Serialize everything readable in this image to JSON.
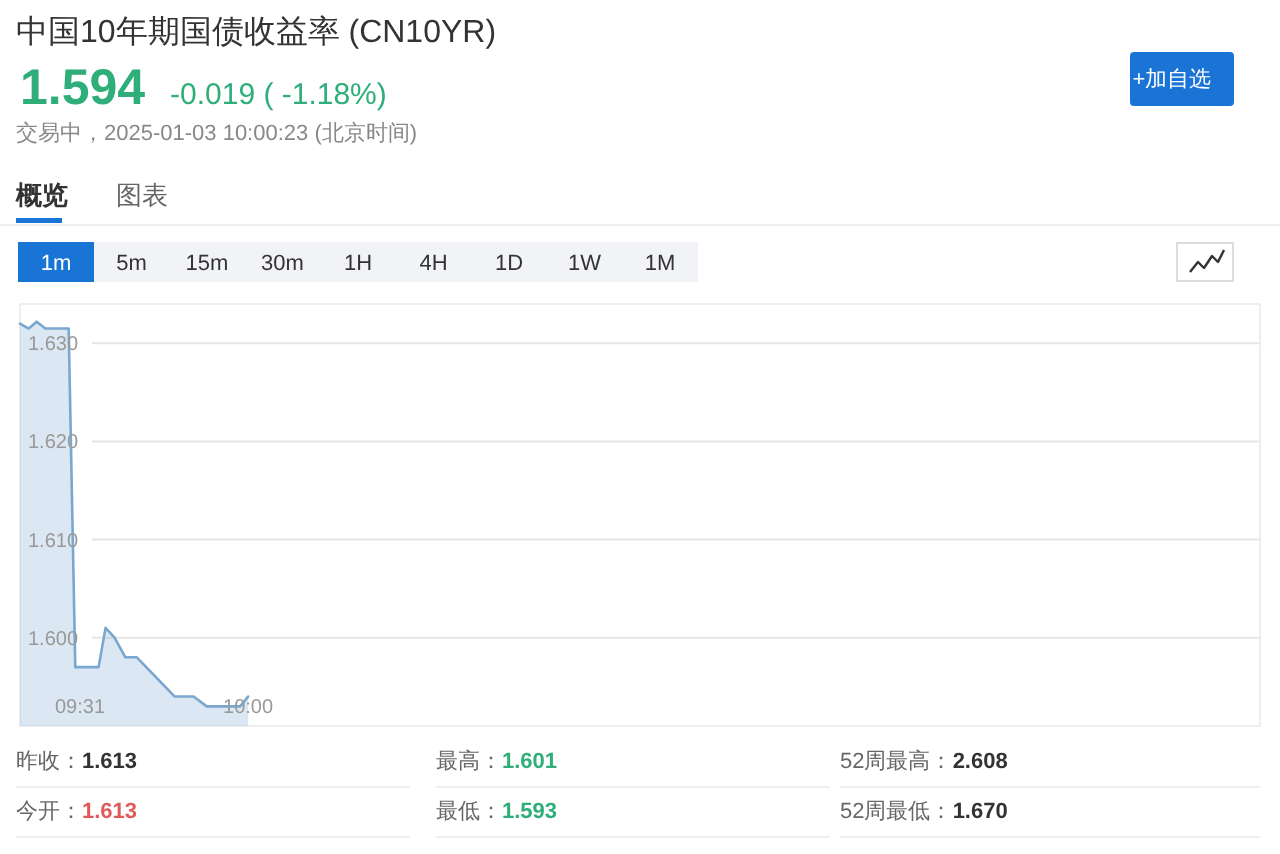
{
  "chart_data": {
    "type": "area",
    "title": "中国10年期国债收益率 (CN10YR)",
    "x": [
      9.344,
      9.369,
      9.392,
      9.417,
      9.484,
      9.503,
      9.57,
      9.59,
      9.616,
      9.647,
      9.68,
      9.789,
      9.843,
      9.881,
      9.977,
      10.0
    ],
    "values": [
      1.632,
      1.6315,
      1.6322,
      1.6315,
      1.6315,
      1.597,
      1.597,
      1.601,
      1.6,
      1.598,
      1.598,
      1.594,
      1.594,
      1.593,
      1.593,
      1.594
    ],
    "color": "#7aa7d0",
    "xlim": [
      9.344,
      12.91
    ],
    "ylim": [
      1.591,
      1.634
    ],
    "xticks": [
      {
        "value": 9.5167,
        "label": "09:31"
      },
      {
        "value": 10,
        "label": "10:00"
      }
    ],
    "yticks": [
      {
        "value": 1.6,
        "label": "1.600"
      },
      {
        "value": 1.61,
        "label": "1.610"
      },
      {
        "value": 1.62,
        "label": "1.620"
      },
      {
        "value": 1.63,
        "label": "1.630"
      }
    ],
    "grid": "y",
    "annotations": [
      "1.594",
      "-0.019 ( -1.18%)",
      "交易中，2025-01-03 10:00:23 (北京时间)",
      "+加自选",
      "概览",
      "图表",
      "1m",
      "5m",
      "15m",
      "30m",
      "1H",
      "4H",
      "1D",
      "1W",
      "1M",
      "昨收：",
      "1.613",
      "最高：",
      "1.601",
      "52周最高：",
      "2.608",
      "今开：",
      "1.613",
      "最低：",
      "1.593",
      "52周最低：",
      "1.670"
    ]
  }
}
